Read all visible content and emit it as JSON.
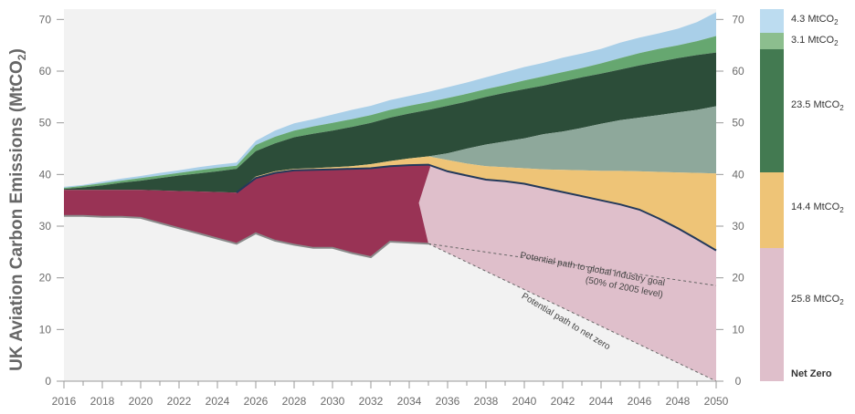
{
  "chart_data": {
    "type": "area",
    "ylabel": "UK Aviation Carbon Emissions (MtCO2)",
    "ylabel_main": "UK Aviation Carbon Emissions (MtCO",
    "ylabel_sub": "2",
    "ylabel_close": ")",
    "xlim": [
      2016,
      2050
    ],
    "ylim": [
      0,
      72
    ],
    "x_ticks": [
      "2016",
      "2018",
      "2020",
      "2022",
      "2024",
      "2026",
      "2028",
      "2030",
      "2032",
      "2034",
      "2036",
      "2038",
      "2040",
      "2042",
      "2044",
      "2046",
      "2048",
      "2050"
    ],
    "y_ticks": [
      "0",
      "10",
      "20",
      "30",
      "40",
      "50",
      "60",
      "70"
    ],
    "grid": false,
    "background": "#f2f2f2",
    "years": [
      2016,
      2017,
      2018,
      2019,
      2020,
      2021,
      2022,
      2023,
      2024,
      2025,
      2026,
      2027,
      2028,
      2029,
      2030,
      2031,
      2032,
      2033,
      2034,
      2035,
      2036,
      2037,
      2038,
      2039,
      2040,
      2041,
      2042,
      2043,
      2044,
      2045,
      2046,
      2047,
      2048,
      2049,
      2050
    ],
    "series": [
      {
        "key": "lower_historic",
        "color": "#8a8a8a",
        "values": [
          32,
          32,
          31.8,
          31.8,
          31.6,
          30.6,
          29.6,
          28.6,
          27.6,
          26.6,
          28.6,
          27.2,
          26.4,
          25.8,
          25.8,
          24.8,
          24,
          27,
          26.8,
          26.6
        ]
      },
      {
        "key": "baseline_total",
        "color": "#993355",
        "values": [
          37,
          37,
          37,
          37,
          37,
          36.9,
          36.8,
          36.7,
          36.6,
          36.5,
          39.3,
          40.3,
          40.8,
          40.9,
          41,
          41.1,
          41.2,
          41.6,
          41.8,
          41.9,
          40.6,
          39.8,
          39,
          38.7,
          38.2,
          37.4,
          36.6,
          35.8,
          35,
          34.2,
          33.2,
          31.5,
          29.6,
          27.5,
          25.3
        ]
      },
      {
        "key": "band_yellow_top",
        "color": "#eec477",
        "values": [
          37,
          37,
          37,
          37,
          37,
          36.9,
          36.8,
          36.7,
          36.6,
          36.5,
          39.6,
          40.6,
          41.1,
          41.2,
          41.4,
          41.6,
          42,
          42.6,
          43.1,
          43.5,
          42.8,
          42.1,
          41.6,
          41.4,
          41.2,
          41,
          40.9,
          40.8,
          40.7,
          40.7,
          40.6,
          40.5,
          40.4,
          40.3,
          40.2
        ]
      },
      {
        "key": "band_grey_top",
        "color": "#8ea89b",
        "values": [
          37,
          37,
          37,
          37,
          37,
          36.9,
          36.8,
          36.7,
          36.6,
          36.5,
          39.6,
          40.6,
          41.1,
          41.2,
          41.4,
          41.6,
          42,
          42.6,
          43.1,
          43.5,
          44.1,
          45,
          45.8,
          46.4,
          47,
          47.8,
          48.3,
          49,
          49.8,
          50.5,
          51,
          51.5,
          52,
          52.5,
          53.2
        ]
      },
      {
        "key": "band_darkgreen_top",
        "color": "#2c4d39",
        "values": [
          37.2,
          37.5,
          37.9,
          38.4,
          38.8,
          39.3,
          39.8,
          40.2,
          40.6,
          41.1,
          44.5,
          46,
          47.2,
          47.9,
          48.5,
          49.2,
          50,
          51,
          51.8,
          52.5,
          53.3,
          54.1,
          55,
          55.8,
          56.5,
          57.2,
          58,
          58.8,
          59.5,
          60.3,
          61.1,
          61.8,
          62.5,
          63.1,
          63.6
        ]
      },
      {
        "key": "band_green_top",
        "color": "#66a770",
        "values": [
          37.4,
          37.8,
          38.3,
          38.8,
          39.3,
          39.8,
          40.3,
          40.8,
          41.3,
          41.7,
          45.7,
          47.3,
          48.5,
          49.3,
          50,
          50.7,
          51.5,
          52.5,
          53.3,
          54,
          54.8,
          55.6,
          56.5,
          57.3,
          58.2,
          59,
          59.8,
          60.6,
          61.5,
          62.5,
          63.5,
          64.3,
          65,
          65.8,
          66.8
        ]
      },
      {
        "key": "band_lightblue_top",
        "color": "#a9cfe8",
        "values": [
          37.6,
          38,
          38.6,
          39.2,
          39.7,
          40.3,
          40.8,
          41.4,
          41.9,
          42.3,
          46.5,
          48.5,
          49.9,
          50.7,
          51.6,
          52.5,
          53.3,
          54.4,
          55.2,
          56,
          56.9,
          57.8,
          58.8,
          59.8,
          60.8,
          61.6,
          62.6,
          63.4,
          64.3,
          65.5,
          66.5,
          67.3,
          68.2,
          69.5,
          71.4
        ]
      },
      {
        "key": "net_zero_region",
        "color": "#dfbfcb"
      }
    ],
    "paths": [
      {
        "label": "Potential path to global industry goal",
        "label_line2": "(50% of 2005 level)",
        "from": [
          2035,
          26.6
        ],
        "to": [
          2050,
          18.5
        ]
      },
      {
        "label": "Potential path to net zero",
        "from": [
          2035,
          26.6
        ],
        "to": [
          2050,
          0
        ]
      }
    ],
    "legend": {
      "placement": "right",
      "items": [
        {
          "value": "4.3 MtCO",
          "sub": "2",
          "color": "#bcdcf0"
        },
        {
          "value": "3.1 MtCO",
          "sub": "2",
          "color": "#8cbe8e"
        },
        {
          "value": "23.5 MtCO",
          "sub": "2",
          "color": "#437a51"
        },
        {
          "value": "14.4 MtCO",
          "sub": "2",
          "color": "#eec477"
        },
        {
          "value": "25.8 MtCO",
          "sub": "2",
          "color": "#dfbfcb"
        },
        {
          "value": "Net Zero",
          "sub": "",
          "color": "#dfbfcb",
          "bold": true
        }
      ]
    }
  }
}
